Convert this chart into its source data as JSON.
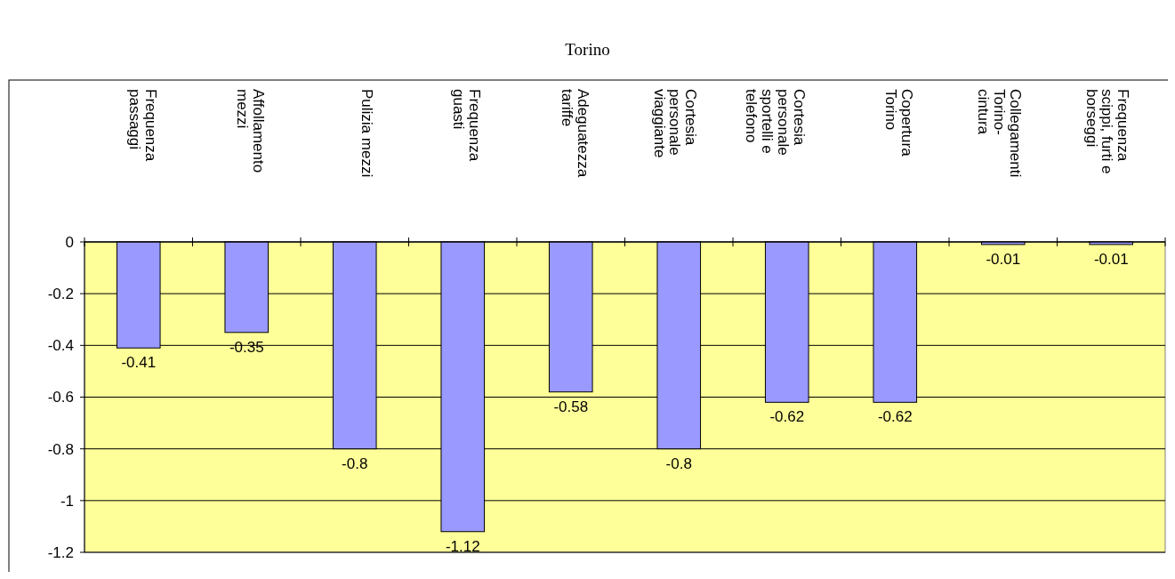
{
  "chart_data": {
    "type": "bar",
    "title": "Torino",
    "categories": [
      "Frequenza passaggi",
      "Affollamento mezzi",
      "Pulizia mezzi",
      "Frequenza guasti",
      "Adeguatezza tariffe",
      "Cortesia personale viaggiante",
      "Cortesia personale sportelli e telefono",
      "Copertura Torino",
      "Collegamenti Torino-cintura",
      "Frequenza scippi, furti e borseggi"
    ],
    "values": [
      -0.41,
      -0.35,
      -0.8,
      -1.12,
      -0.58,
      -0.8,
      -0.62,
      -0.62,
      -0.01,
      -0.01
    ],
    "color": "#9999ff",
    "ylim": [
      -1.2,
      0
    ],
    "yticks": [
      0,
      -0.2,
      -0.4,
      -0.6,
      -0.8,
      -1,
      -1.2
    ],
    "grid": "y",
    "data_labels": true
  }
}
